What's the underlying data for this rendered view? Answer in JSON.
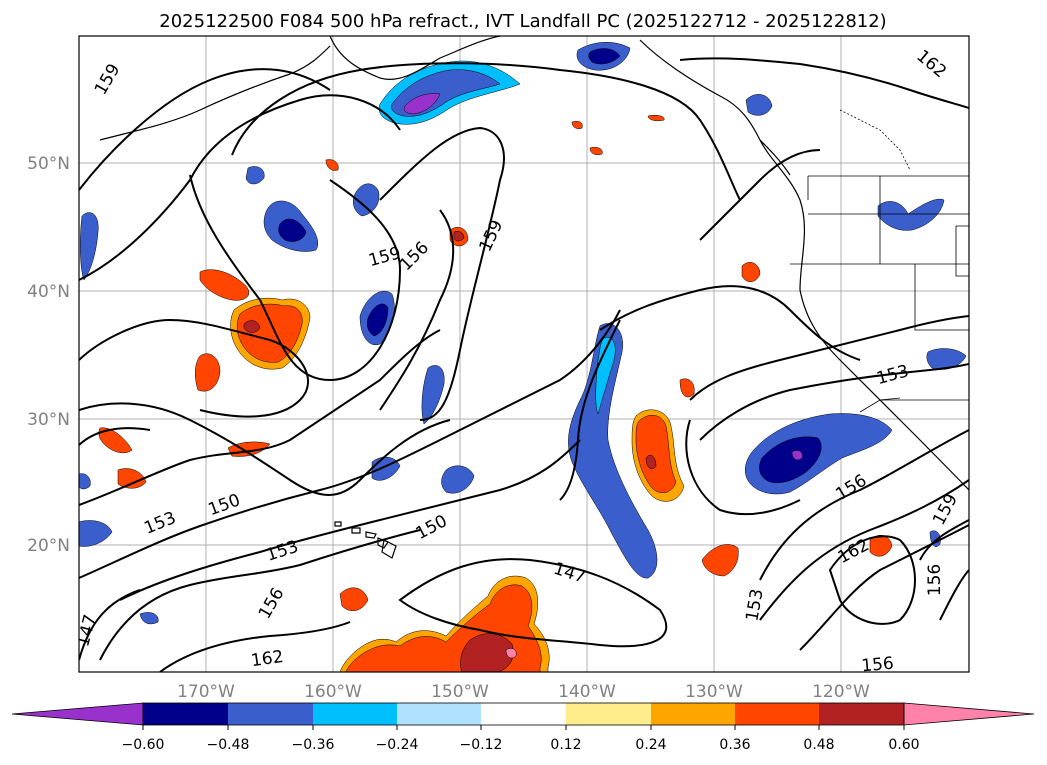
{
  "title": "2025122500 F084 500 hPa refract., IVT Landfall PC (2025122712 - 2025122812)",
  "lat_labels": [
    "50°N",
    "40°N",
    "30°N",
    "20°N"
  ],
  "lon_labels": [
    "170°W",
    "160°W",
    "150°W",
    "140°W",
    "130°W",
    "120°W"
  ],
  "colorbar": {
    "ticks": [
      "−0.60",
      "−0.48",
      "−0.36",
      "−0.24",
      "−0.12",
      "0.12",
      "0.24",
      "0.36",
      "0.48",
      "0.60"
    ],
    "colors": [
      "#9932cc",
      "#00008b",
      "#3a5fcd",
      "#00bfff",
      "#b0e2ff",
      "#ffffff",
      "#ffec8b",
      "#ffa500",
      "#ff4500",
      "#b22222",
      "#ff82ab"
    ]
  },
  "contour_labels": [
    "159",
    "159",
    "156",
    "159",
    "162",
    "153",
    "150",
    "153",
    "156",
    "147",
    "150",
    "147",
    "153",
    "156",
    "162",
    "159",
    "156",
    "153",
    "162",
    "156"
  ],
  "colors": {
    "grid": "#b0b0b0",
    "axis": "#000000",
    "tick_label": "#808080",
    "deep_purple": "#9932cc",
    "navy": "#00008b",
    "royal_blue": "#3a5fcd",
    "sky": "#00bfff",
    "pale_blue": "#b0e2ff",
    "pale_yellow": "#ffec8b",
    "orange": "#ffa500",
    "orange_red": "#ff4500",
    "firebrick": "#b22222",
    "pink": "#ff82ab"
  }
}
